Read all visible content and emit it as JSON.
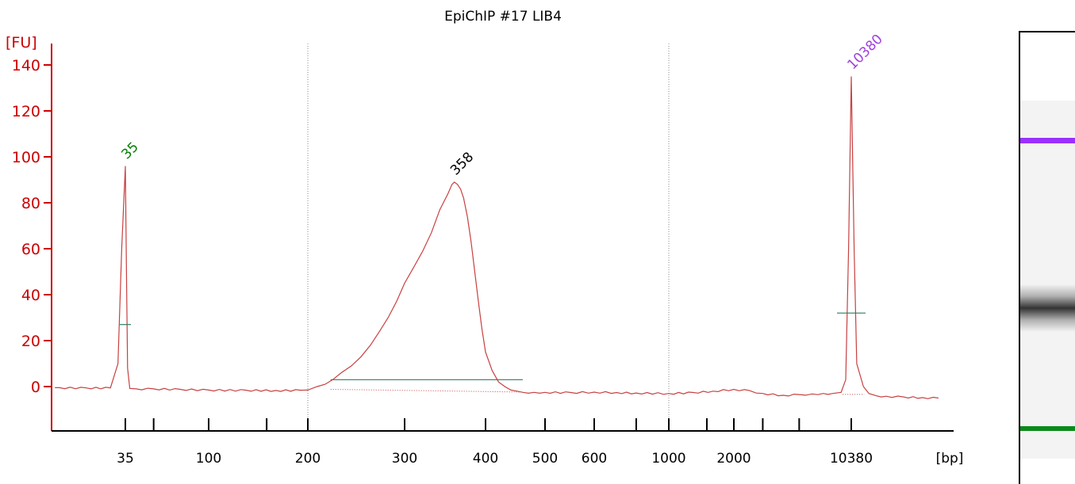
{
  "chart_data": {
    "type": "line",
    "title": "EpiChIP #17 LIB4",
    "ylabel": "[FU]",
    "xlabel": "[bp]",
    "ylim": [
      -15,
      142
    ],
    "yticks": [
      0,
      20,
      40,
      60,
      80,
      100,
      120,
      140
    ],
    "ytick_labels": [
      "0",
      "20",
      "40",
      "60",
      "80",
      "100",
      "120",
      "140"
    ],
    "xticks": [
      "35",
      "100",
      "200",
      "300",
      "400",
      "500",
      "600",
      "1000",
      "2000",
      "10380"
    ],
    "xlim_bp": [
      27,
      30000
    ],
    "series": [
      {
        "x": [
          25,
          27,
          30,
          33,
          34,
          34.5,
          35,
          35.5,
          36,
          37,
          40,
          50,
          70,
          100,
          130,
          160,
          190,
          200,
          208,
          215,
          222,
          230,
          240,
          250,
          260,
          270,
          280,
          290,
          300,
          310,
          320,
          330,
          340,
          350,
          355,
          358,
          362,
          366,
          370,
          375,
          380,
          385,
          390,
          395,
          400,
          410,
          420,
          430,
          440,
          450,
          460,
          480,
          500,
          550,
          600,
          700,
          800,
          1000,
          1300,
          1600,
          2000,
          2500,
          3000,
          4000,
          5000,
          6000,
          7000,
          8000,
          9000,
          9600,
          10000,
          10380,
          10700,
          11000,
          11800,
          12500,
          13500,
          15000,
          18000,
          22000,
          26000
        ],
        "y": [
          -0.5,
          -0.5,
          -0.6,
          -0.6,
          10,
          60,
          96,
          50,
          8,
          -0.8,
          -1,
          -1,
          -1.2,
          -1.5,
          -1.6,
          -1.7,
          -1.6,
          -1.5,
          0,
          1,
          3,
          6,
          9,
          13,
          18,
          24,
          30,
          37,
          45,
          52,
          59,
          67,
          77,
          84,
          88,
          89,
          88,
          86,
          82,
          74,
          63,
          50,
          37,
          25,
          15,
          7,
          2,
          0,
          -1.5,
          -2,
          -2.5,
          -2.5,
          -2.5,
          -2.6,
          -2.4,
          -2.6,
          -2.8,
          -3,
          -2.6,
          -2,
          -1.2,
          -1.8,
          -3,
          -3.8,
          -3.5,
          -3.2,
          -3,
          -3,
          -2.5,
          3,
          60,
          135,
          60,
          10,
          0,
          -3,
          -4,
          -4.2,
          -4.5,
          -4.8,
          -5
        ]
      }
    ],
    "peaks": [
      {
        "label": "35",
        "bp": 35,
        "fu": 96,
        "color": "#008000"
      },
      {
        "label": "358",
        "bp": 358,
        "fu": 89,
        "color": "#000000"
      },
      {
        "label": "10380",
        "bp": 10380,
        "fu": 135,
        "color": "#a040e0"
      }
    ],
    "marker_lines": [
      {
        "bp": 35,
        "fu": 27
      },
      {
        "bp": 10380,
        "fu": 32
      }
    ],
    "region": {
      "bp_start": 220,
      "bp_end": 460,
      "fu": 3
    },
    "gridlines_bp": [
      200,
      1000
    ],
    "colors": {
      "axis": "#cc0000",
      "trace": "#c84040",
      "marker": "#2e7d5e",
      "grid": "#888888",
      "lower_marker": "#008000",
      "upper_marker": "#a040e0"
    }
  },
  "gel": {
    "bands": [
      {
        "color": "#9b30ff",
        "kind": "upper-marker"
      },
      {
        "color": "#333333",
        "kind": "sample"
      },
      {
        "color": "#0a8a1a",
        "kind": "lower-marker"
      }
    ]
  }
}
